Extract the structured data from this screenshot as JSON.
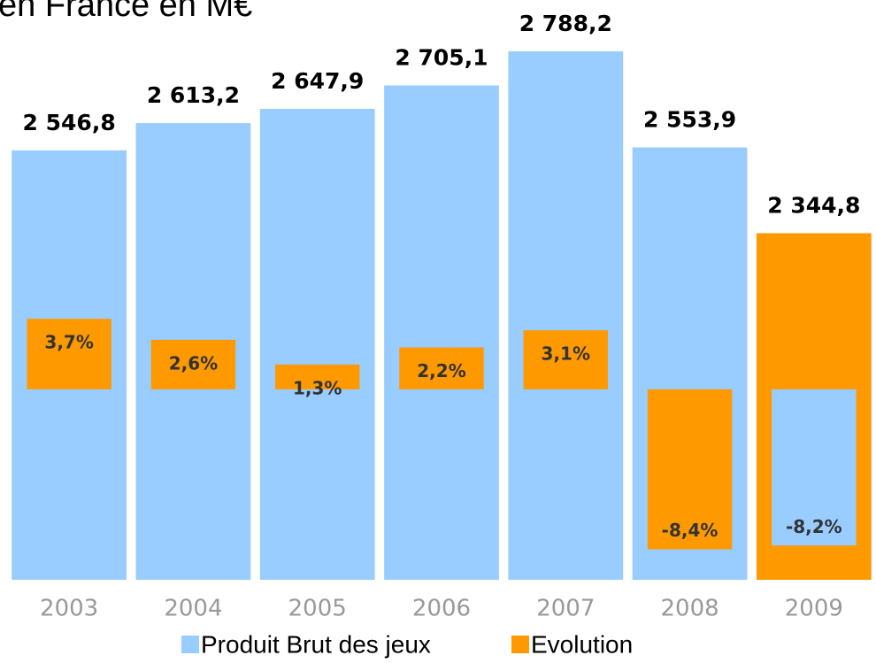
{
  "chart_data": {
    "type": "bar",
    "title": "en France en M€",
    "categories": [
      "2003",
      "2004",
      "2005",
      "2006",
      "2007",
      "2008",
      "2009"
    ],
    "series": [
      {
        "name": "Produit Brut des jeux",
        "color": "#99ccff",
        "point_colors": [
          "#99ccff",
          "#99ccff",
          "#99ccff",
          "#99ccff",
          "#99ccff",
          "#99ccff",
          "#ff9900"
        ],
        "values": [
          2546.8,
          2613.2,
          2647.9,
          2705.1,
          2788.2,
          2553.9,
          2344.8
        ],
        "value_labels": [
          "2 546,8",
          "2 613,2",
          "2 647,9",
          "2 705,1",
          "2 788,2",
          "2 553,9",
          "2 344,8"
        ]
      },
      {
        "name": "Evolution",
        "color": "#ff9900",
        "axis": "y2",
        "point_colors": [
          "#ff9900",
          "#ff9900",
          "#ff9900",
          "#ff9900",
          "#ff9900",
          "#ff9900",
          "#99ccff"
        ],
        "values": [
          3.7,
          2.6,
          1.3,
          2.2,
          3.1,
          -8.4,
          -8.2
        ],
        "value_labels": [
          "3,7%",
          "2,6%",
          "1,3%",
          "2,2%",
          "3,1%",
          "-8,4%",
          "-8,2%"
        ]
      }
    ],
    "ylim": [
      1500,
      2800
    ],
    "y2lim": [
      -10,
      18
    ],
    "grid": false,
    "legend": "bottom"
  }
}
